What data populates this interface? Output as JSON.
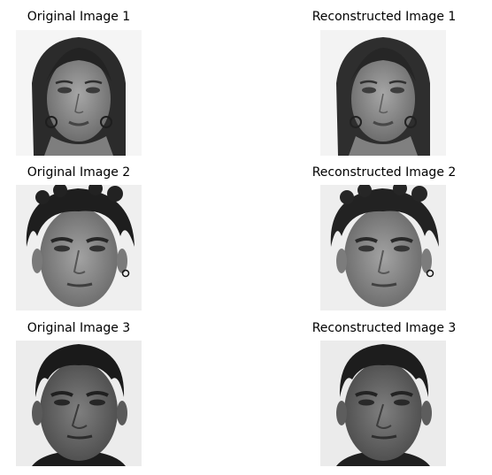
{
  "panels": [
    {
      "title": "Original Image 1",
      "face": "face-female-long-hair-earrings"
    },
    {
      "title": "Reconstructed Image 1",
      "face": "face-female-long-hair-earrings"
    },
    {
      "title": "Original Image 2",
      "face": "face-male-curly-hair-earring"
    },
    {
      "title": "Reconstructed Image 2",
      "face": "face-male-curly-hair-earring"
    },
    {
      "title": "Original Image 3",
      "face": "face-male-short-hair"
    },
    {
      "title": "Reconstructed Image 3",
      "face": "face-male-short-hair"
    }
  ],
  "colors": {
    "background_female": "#f4f4f4",
    "background_male": "#efefef",
    "hair_dark": "#2a2a2a",
    "skin_light": "#8e8e8e",
    "skin_dark": "#5e5e5e"
  }
}
